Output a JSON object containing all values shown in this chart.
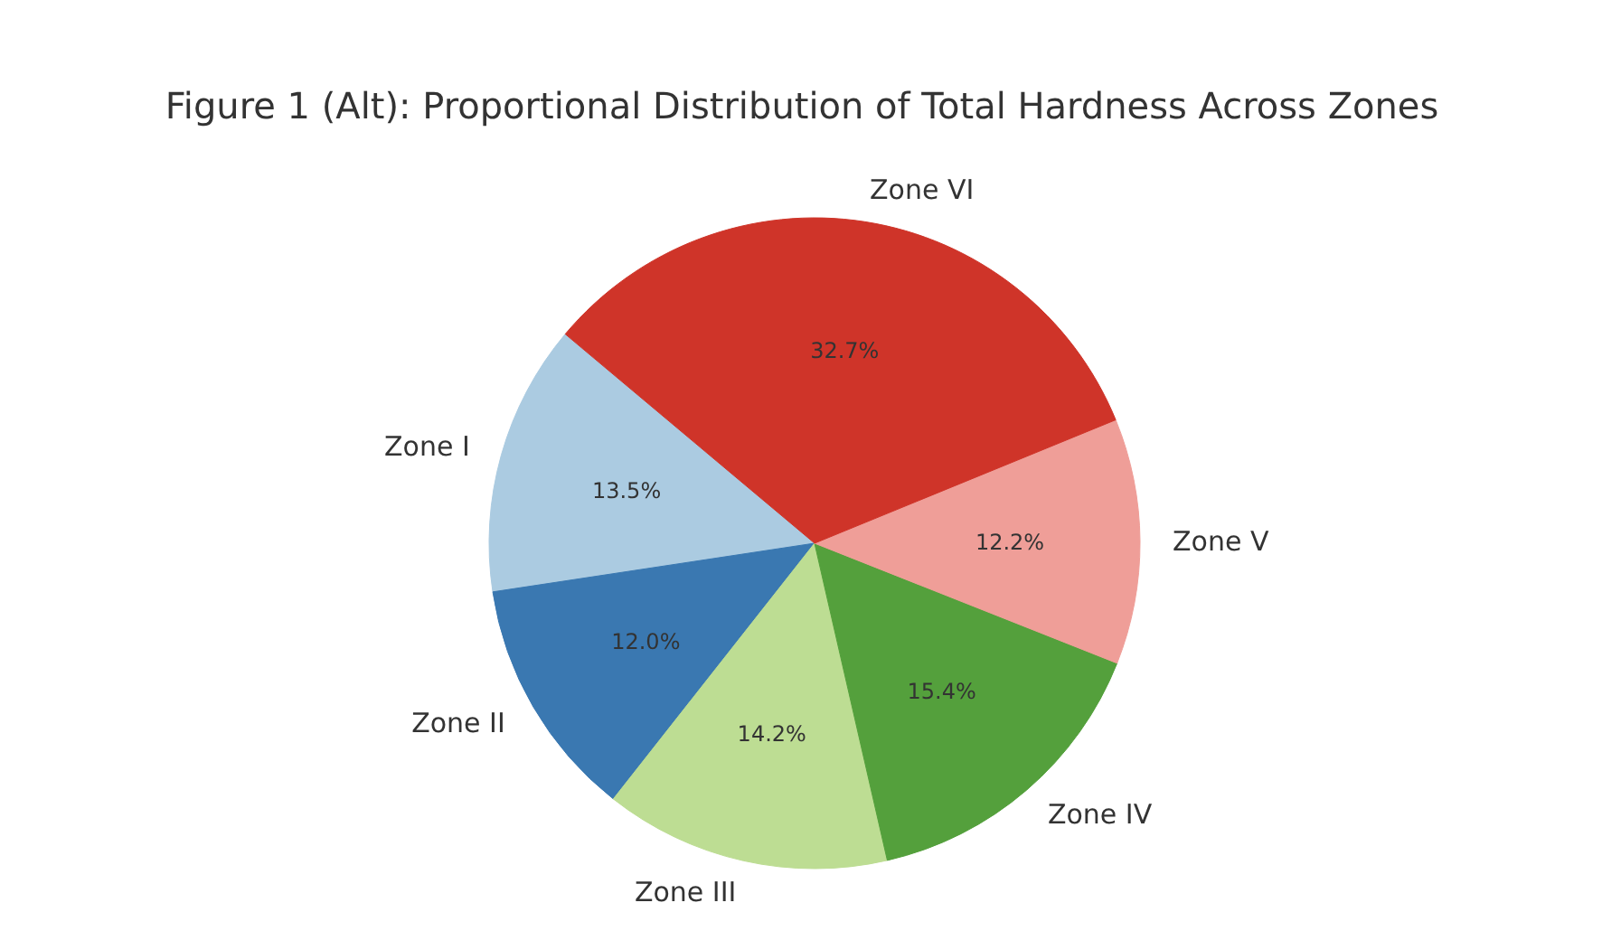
{
  "chart_data": {
    "type": "pie",
    "title": "Figure 1 (Alt): Proportional Distribution of Total Hardness Across Zones",
    "categories": [
      "Zone I",
      "Zone II",
      "Zone III",
      "Zone IV",
      "Zone V",
      "Zone VI"
    ],
    "values": [
      13.5,
      12.0,
      14.2,
      15.4,
      12.2,
      32.7
    ],
    "value_labels": [
      "13.5%",
      "12.0%",
      "14.2%",
      "15.4%",
      "12.2%",
      "32.7%"
    ],
    "colors": [
      "#abcbe1",
      "#3a78b1",
      "#bddd93",
      "#54a03c",
      "#ef9e98",
      "#cf3429"
    ],
    "legend": false
  }
}
